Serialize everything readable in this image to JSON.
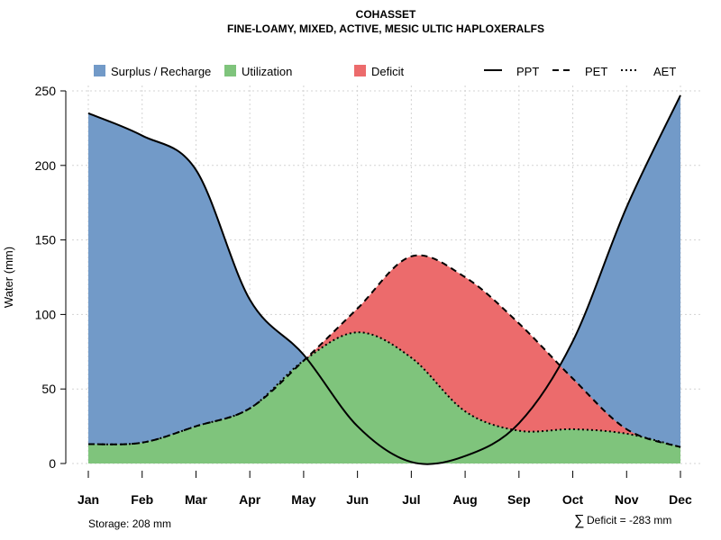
{
  "chart_data": {
    "type": "area",
    "title": "COHASSET",
    "subtitle": "FINE-LOAMY, MIXED, ACTIVE, MESIC ULTIC HAPLOXERALFS",
    "xlabel": "",
    "ylabel": "Water (mm)",
    "ylim": [
      0,
      250
    ],
    "yticks": [
      0,
      50,
      100,
      150,
      200,
      250
    ],
    "grid": true,
    "legend_position": "top",
    "categories": [
      "Jan",
      "Feb",
      "Mar",
      "Apr",
      "May",
      "Jun",
      "Jul",
      "Aug",
      "Sep",
      "Oct",
      "Nov",
      "Dec"
    ],
    "series": [
      {
        "name": "PPT",
        "style": "solid",
        "values": [
          235,
          220,
          197,
          110,
          73,
          25,
          1,
          5,
          27,
          82,
          172,
          247
        ]
      },
      {
        "name": "PET",
        "style": "dashed",
        "values": [
          13,
          14,
          25,
          37,
          69,
          104,
          139,
          125,
          94,
          57,
          23,
          11
        ]
      },
      {
        "name": "AET",
        "style": "dotted",
        "values": [
          13,
          14,
          25,
          37,
          69,
          88,
          71,
          35,
          22,
          23,
          20,
          11
        ]
      }
    ],
    "areas": [
      {
        "name": "Surplus / Recharge",
        "color": "#729ac8"
      },
      {
        "name": "Utilization",
        "color": "#7fc47c"
      },
      {
        "name": "Deficit",
        "color": "#ec6b6c"
      }
    ],
    "annotations": {
      "storage": "Storage: 208 mm",
      "deficit": "Deficit = -283 mm",
      "deficit_symbol": "∑"
    }
  }
}
